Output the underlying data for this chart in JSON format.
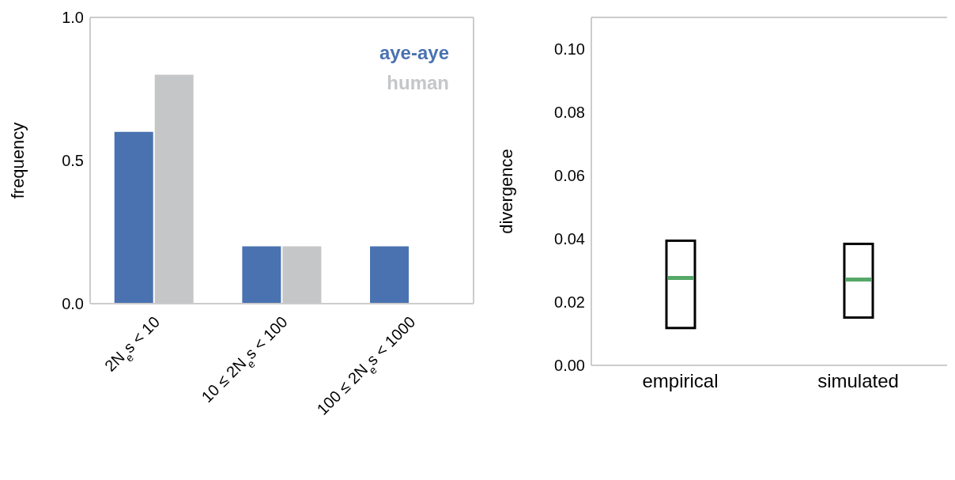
{
  "chart_data": [
    {
      "type": "bar",
      "ylabel": "frequency",
      "categories": [
        "2N$_{e}$s < 10",
        "10 ≤ 2N$_{e}$s < 100",
        "100 ≤ 2N$_{e}$s < 1000"
      ],
      "series": [
        {
          "name": "aye-aye",
          "color": "#4a72b0",
          "values": [
            0.6,
            0.2,
            0.2
          ]
        },
        {
          "name": "human",
          "color": "#c5c6c8",
          "values": [
            0.8,
            0.2,
            0
          ]
        }
      ],
      "ylim": [
        0,
        1
      ],
      "yticks": [
        {
          "value": 0,
          "label": "0.0"
        },
        {
          "value": 0.5,
          "label": "0.5"
        },
        {
          "value": 1,
          "label": "1.0"
        }
      ],
      "legend": "top right"
    },
    {
      "type": "box",
      "ylabel": "divergence",
      "categories": [
        "empirical",
        "simulated"
      ],
      "boxes": [
        {
          "low": 0.0118,
          "q1": 0.0118,
          "median": 0.0276,
          "q3": 0.0394,
          "high": 0.0394
        },
        {
          "low": 0.0151,
          "q1": 0.0151,
          "median": 0.0271,
          "q3": 0.0384,
          "high": 0.0384
        }
      ],
      "ylim": [
        0,
        0.11
      ],
      "yticks": [
        {
          "value": 0,
          "label": "0.00"
        },
        {
          "value": 0.02,
          "label": "0.02"
        },
        {
          "value": 0.04,
          "label": "0.04"
        },
        {
          "value": 0.06,
          "label": "0.06"
        },
        {
          "value": 0.08,
          "label": "0.08"
        },
        {
          "value": 0.1,
          "label": "0.10"
        }
      ]
    }
  ]
}
